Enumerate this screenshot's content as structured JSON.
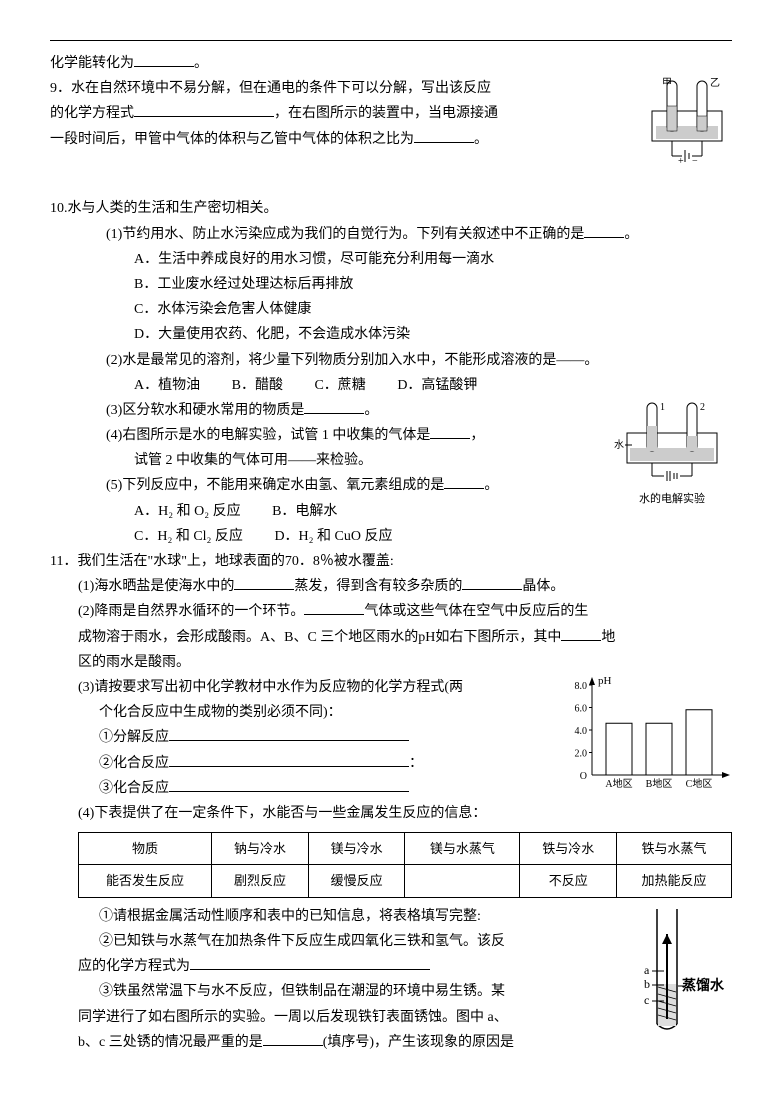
{
  "q8_frag": "化学能转化为",
  "q8_end": "。",
  "q9": {
    "num": "9．",
    "l1a": "水在自然环境中不易分解，但在通电的条件下可以分解，写出该反应",
    "l2a": "的化学方程式",
    "l2b": "，在右图所示的装置中，当电源接通",
    "l3a": "一段时间后，甲管中气体的体积与乙管中气体的体积之比为",
    "l3b": "。",
    "labels": {
      "left": "甲",
      "right": "乙"
    }
  },
  "q10": {
    "num": "10.",
    "stem": "水与人类的生活和生产密切相关。",
    "p1": {
      "label": "(1)",
      "text": "节约用水、防止水污染应成为我们的自觉行为。下列有关叙述中不正确的是",
      "end": "。",
      "A": "A．生活中养成良好的用水习惯，尽可能充分利用每一滴水",
      "B": "B．工业废水经过处理达标后再排放",
      "C": "C．水体污染会危害人体健康",
      "D": "D．大量使用农药、化肥，不会造成水体污染"
    },
    "p2": {
      "label": "(2)",
      "text": "水是最常见的溶剂，将少量下列物质分别加入水中，不能形成溶液的是——。",
      "A": "A．植物油",
      "B": "B．醋酸",
      "C": "C．蔗糖",
      "D": "D．高锰酸钾"
    },
    "p3": {
      "label": "(3)",
      "text_a": "区分软水和硬水常用的物质是",
      "text_b": "。"
    },
    "p4": {
      "label": "(4)",
      "text_a": "右图所示是水的电解实验，试管 1 中收集的气体是",
      "text_b": "，",
      "l2": "试管 2 中收集的气体可用——来检验。",
      "diag_label1": "1",
      "diag_label2": "2",
      "diag_water": "水",
      "caption": "水的电解实验"
    },
    "p5": {
      "label": "(5)",
      "text_a": "下列反应中，不能用来确定水由氢、氧元素组成的是",
      "text_b": "。",
      "A": "A．H₂ 和 O₂ 反应",
      "B": "B．电解水",
      "C": "C．H₂ 和 Cl₂ 反应",
      "D": "D．H₂ 和 CuO 反应"
    }
  },
  "q11": {
    "num": "11．",
    "stem": "我们生活在\"水球\"上，地球表面的70．8％被水覆盖:",
    "p1": {
      "label": "(1)",
      "a": "海水晒盐是使海水中的",
      "b": "蒸发，得到含有较多杂质的",
      "c": "晶体。"
    },
    "p2": {
      "label": "(2)",
      "a": "降雨是自然界水循环的一个环节。",
      "b": "气体或这些气体在空气中反应后的生",
      "l2a": "成物溶于雨水，会形成酸雨。A、B、C 三个地区雨水的pH如右下图所示，其中",
      "l2b": "地",
      "l3": "区的雨水是酸雨。"
    },
    "p3": {
      "label": "(3)",
      "a": "请按要求写出初中化学教材中水作为反应物的化学方程式(两",
      "l2": "个化合反应中生成物的类别必须不同)：",
      "r1": "①分解反应",
      "r2": "②化合反应",
      "r2_end": "：",
      "r3": "③化合反应"
    },
    "chart": {
      "ylabel": "pH",
      "yticks": [
        "O",
        "2.0",
        "4.0",
        "6.0",
        "8.0"
      ],
      "categories": [
        "A地区",
        "B地区",
        "C地区"
      ],
      "values": [
        4.6,
        4.6,
        5.8
      ],
      "ylim": [
        0,
        8
      ],
      "bar_color": "#ffffff",
      "bar_border": "#000000",
      "axis_color": "#000000"
    },
    "p4": {
      "label": "(4)",
      "text": "下表提供了在一定条件下，水能否与一些金属发生反应的信息：",
      "table": {
        "headers": [
          "物质",
          "钠与冷水",
          "镁与冷水",
          "镁与水蒸气",
          "铁与冷水",
          "铁与水蒸气"
        ],
        "row": [
          "能否发生反应",
          "剧烈反应",
          "缓慢反应",
          "",
          "不反应",
          "加热能反应"
        ]
      },
      "s1": "①请根据金属活动性顺序和表中的已知信息，将表格填写完整:",
      "s2a": "②已知铁与水蒸气在加热条件下反应生成四氧化三铁和氢气。该反",
      "s2b": "应的化学方程式为",
      "s3a": "③铁虽然常温下与水不反应，但铁制品在潮湿的环境中易生锈。某",
      "s3b": "同学进行了如右图所示的实验。一周以后发现铁钉表面锈蚀。图中 a、",
      "s3c_a": "b、c 三处锈的情况最严重的是",
      "s3c_b": "(填序号)，产生该现象的原因是",
      "diag": {
        "a": "a",
        "b": "b",
        "c": "c",
        "water": "蒸馏水"
      }
    }
  }
}
